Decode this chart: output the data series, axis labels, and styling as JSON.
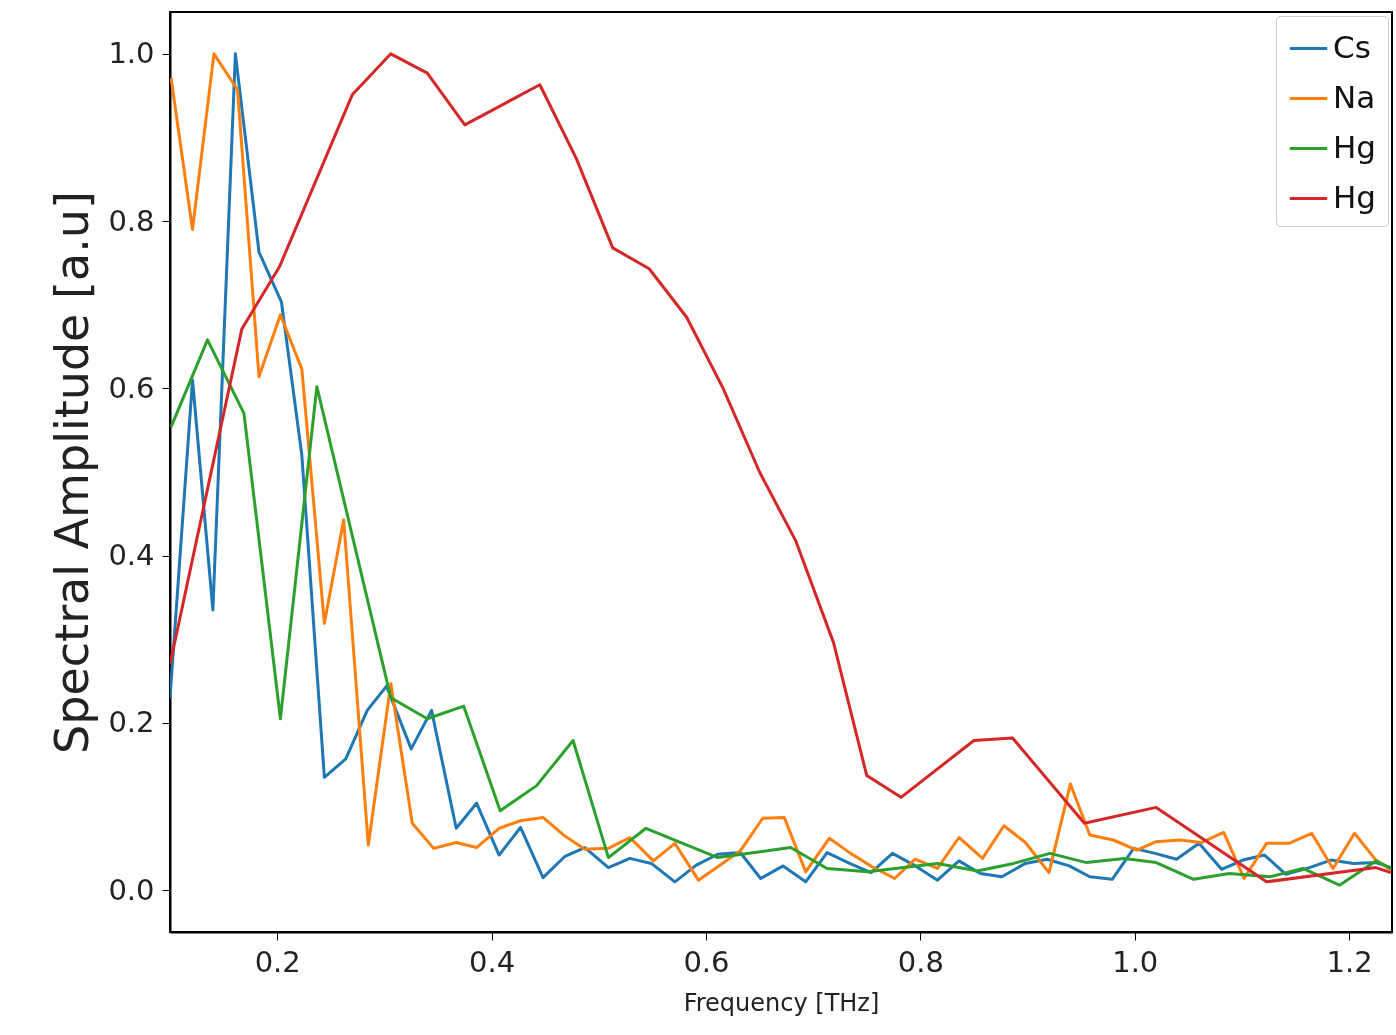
{
  "chart_data": {
    "type": "line",
    "xlabel": "Frequency [THz]",
    "ylabel": "Spectral Amplitude [a.u]",
    "xlim": [
      0.1,
      1.24
    ],
    "ylim": [
      -0.05,
      1.05
    ],
    "xticks": [
      0.2,
      0.4,
      0.6,
      0.8,
      {
        "value": 1,
        "label": "1.0"
      },
      1.2
    ],
    "yticks": [
      {
        "value": 0,
        "label": "0.0"
      },
      0.2,
      0.4,
      0.6,
      0.8,
      {
        "value": 1,
        "label": "1.0"
      }
    ],
    "grid": false,
    "legend": "top right",
    "series": [
      {
        "name": "Cs",
        "color": "#1f77b4",
        "x": [
          0.1,
          0.121,
          0.14,
          0.161,
          0.183,
          0.204,
          0.223,
          0.244,
          0.264,
          0.284,
          0.302,
          0.325,
          0.344,
          0.367,
          0.386,
          0.407,
          0.427,
          0.448,
          0.468,
          0.487,
          0.509,
          0.529,
          0.549,
          0.571,
          0.591,
          0.611,
          0.632,
          0.651,
          0.672,
          0.693,
          0.713,
          0.734,
          0.754,
          0.774,
          0.794,
          0.816,
          0.836,
          0.856,
          0.876,
          0.898,
          0.918,
          0.939,
          0.958,
          0.979,
          0.999,
          1.019,
          1.039,
          1.06,
          1.081,
          1.101,
          1.121,
          1.141,
          1.163,
          1.183,
          1.204,
          1.225,
          1.239
        ],
        "values": [
          0.23,
          0.61,
          0.335,
          1.0,
          0.763,
          0.703,
          0.52,
          0.135,
          0.157,
          0.215,
          0.244,
          0.169,
          0.215,
          0.074,
          0.104,
          0.042,
          0.075,
          0.015,
          0.04,
          0.051,
          0.027,
          0.038,
          0.032,
          0.01,
          0.03,
          0.043,
          0.045,
          0.014,
          0.029,
          0.01,
          0.045,
          0.032,
          0.021,
          0.044,
          0.03,
          0.012,
          0.035,
          0.02,
          0.016,
          0.032,
          0.037,
          0.029,
          0.016,
          0.013,
          0.05,
          0.044,
          0.037,
          0.056,
          0.025,
          0.036,
          0.042,
          0.019,
          0.027,
          0.036,
          0.032,
          0.033,
          0.027
        ]
      },
      {
        "name": "Na",
        "color": "#ff7f0e",
        "x": [
          0.101,
          0.121,
          0.141,
          0.163,
          0.183,
          0.203,
          0.223,
          0.244,
          0.262,
          0.285,
          0.306,
          0.326,
          0.346,
          0.367,
          0.386,
          0.407,
          0.427,
          0.448,
          0.467,
          0.487,
          0.509,
          0.529,
          0.551,
          0.571,
          0.593,
          0.611,
          0.632,
          0.653,
          0.673,
          0.693,
          0.715,
          0.735,
          0.755,
          0.776,
          0.795,
          0.816,
          0.836,
          0.858,
          0.878,
          0.898,
          0.92,
          0.94,
          0.958,
          0.98,
          1.002,
          1.02,
          1.042,
          1.062,
          1.083,
          1.102,
          1.123,
          1.144,
          1.165,
          1.185,
          1.205,
          1.225,
          1.239
        ],
        "values": [
          0.971,
          0.79,
          1.0,
          0.957,
          0.614,
          0.688,
          0.623,
          0.319,
          0.443,
          0.054,
          0.247,
          0.08,
          0.05,
          0.057,
          0.051,
          0.074,
          0.083,
          0.087,
          0.066,
          0.049,
          0.05,
          0.063,
          0.035,
          0.056,
          0.012,
          0.028,
          0.047,
          0.086,
          0.087,
          0.022,
          0.062,
          0.044,
          0.028,
          0.014,
          0.037,
          0.026,
          0.063,
          0.038,
          0.077,
          0.057,
          0.021,
          0.127,
          0.066,
          0.06,
          0.048,
          0.058,
          0.06,
          0.057,
          0.069,
          0.014,
          0.056,
          0.056,
          0.068,
          0.026,
          0.068,
          0.036,
          0.024
        ]
      },
      {
        "name": "Hg",
        "color": "#2ca02c",
        "x": [
          0.101,
          0.135,
          0.169,
          0.203,
          0.237,
          0.306,
          0.34,
          0.374,
          0.408,
          0.442,
          0.476,
          0.509,
          0.544,
          0.611,
          0.679,
          0.713,
          0.751,
          0.816,
          0.853,
          0.887,
          0.921,
          0.955,
          0.99,
          1.02,
          1.055,
          1.088,
          1.126,
          1.157,
          1.191,
          1.225,
          1.239
        ],
        "values": [
          0.554,
          0.658,
          0.57,
          0.205,
          0.602,
          0.23,
          0.205,
          0.22,
          0.095,
          0.125,
          0.179,
          0.039,
          0.074,
          0.039,
          0.051,
          0.026,
          0.022,
          0.032,
          0.023,
          0.032,
          0.044,
          0.033,
          0.038,
          0.033,
          0.013,
          0.02,
          0.016,
          0.026,
          0.006,
          0.035,
          0.026
        ]
      },
      {
        "name": "Hg",
        "color": "#d62728",
        "x": [
          0.1,
          0.167,
          0.202,
          0.27,
          0.306,
          0.34,
          0.375,
          0.445,
          0.479,
          0.513,
          0.547,
          0.582,
          0.616,
          0.65,
          0.684,
          0.719,
          0.75,
          0.782,
          0.85,
          0.886,
          0.953,
          1.02,
          1.123,
          1.225,
          1.239
        ],
        "values": [
          0.27,
          0.671,
          0.745,
          0.951,
          1.0,
          0.977,
          0.915,
          0.963,
          0.875,
          0.768,
          0.743,
          0.685,
          0.6,
          0.5,
          0.417,
          0.296,
          0.137,
          0.111,
          0.179,
          0.182,
          0.08,
          0.099,
          0.01,
          0.027,
          0.021
        ]
      }
    ]
  }
}
